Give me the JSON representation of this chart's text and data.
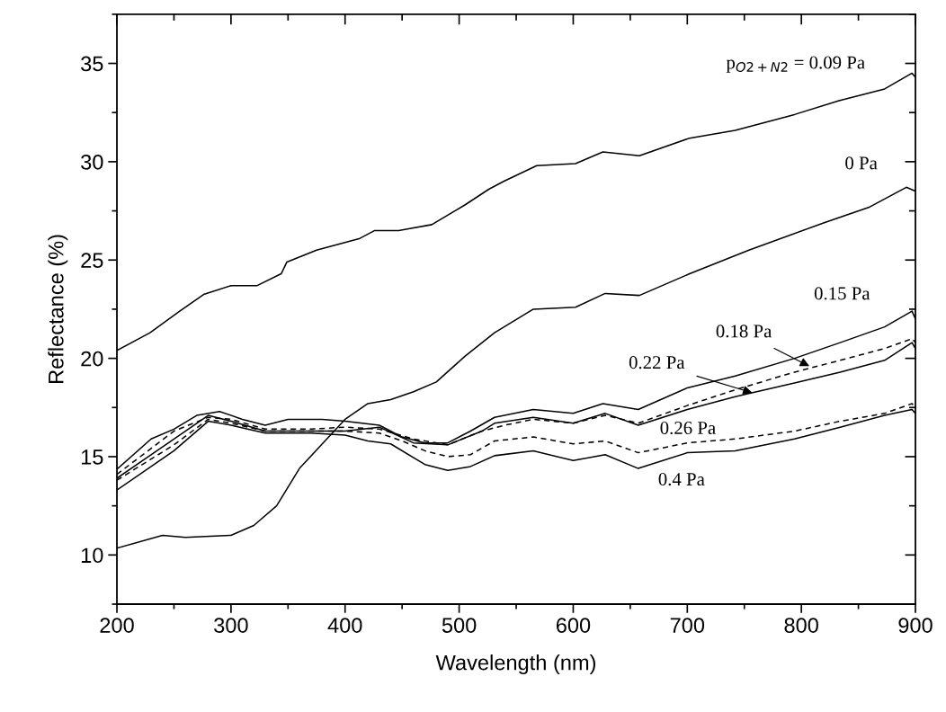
{
  "chart_data": {
    "type": "line",
    "xlabel": "Wavelength (nm)",
    "ylabel": "Reflectance (%)",
    "xlim": [
      200,
      900
    ],
    "xticks": [
      200,
      300,
      400,
      500,
      600,
      700,
      800,
      900
    ],
    "ylim": [
      7.5,
      37.5
    ],
    "yticks": [
      10,
      15,
      20,
      25,
      30,
      35
    ],
    "marker": "none",
    "series": [
      {
        "color": "#000000",
        "line_style": "solid",
        "x": [
          200,
          229,
          255,
          276,
          300,
          323,
          344,
          349,
          375,
          413,
          426,
          447,
          476,
          505,
          526,
          539,
          568,
          602,
          626,
          658,
          702,
          742,
          794,
          833,
          873,
          897,
          900
        ],
        "values": [
          20.4,
          21.3,
          22.4,
          23.25,
          23.7,
          23.7,
          24.3,
          24.9,
          25.5,
          26.1,
          26.5,
          26.5,
          26.8,
          27.8,
          28.6,
          29.0,
          29.8,
          29.9,
          30.5,
          30.3,
          31.2,
          31.6,
          32.4,
          33.1,
          33.7,
          34.5,
          34.3
        ]
      },
      {
        "color": "#000000",
        "line_style": "solid",
        "x": [
          200,
          240,
          260,
          300,
          320,
          340,
          360,
          380,
          400,
          420,
          440,
          460,
          480,
          505,
          531,
          565,
          602,
          628,
          658,
          702,
          754,
          820,
          860,
          892,
          900
        ],
        "values": [
          10.35,
          11.0,
          10.9,
          11.0,
          11.5,
          12.5,
          14.4,
          15.65,
          16.9,
          17.7,
          17.9,
          18.3,
          18.8,
          20.1,
          21.3,
          22.5,
          22.6,
          23.3,
          23.2,
          24.3,
          25.5,
          26.9,
          27.7,
          28.7,
          28.5
        ]
      },
      {
        "color": "#000000",
        "line_style": "solid",
        "x": [
          200,
          230,
          250,
          270,
          290,
          310,
          330,
          350,
          380,
          400,
          430,
          450,
          470,
          490,
          510,
          531,
          565,
          600,
          626,
          657,
          700,
          742,
          794,
          834,
          873,
          897,
          900
        ],
        "values": [
          14.36,
          15.9,
          16.4,
          17.1,
          17.3,
          16.9,
          16.6,
          16.9,
          16.9,
          16.8,
          16.6,
          16.0,
          15.7,
          15.7,
          16.3,
          17.0,
          17.4,
          17.2,
          17.7,
          17.4,
          18.5,
          19.1,
          20.0,
          20.8,
          21.6,
          22.4,
          22.0
        ]
      },
      {
        "color": "#000000",
        "line_style": "dashed",
        "x": [
          200,
          250,
          280,
          300,
          330,
          370,
          400,
          430,
          460,
          490,
          520,
          540,
          565,
          600,
          628,
          657,
          700,
          742,
          794,
          834,
          873,
          897,
          900
        ],
        "values": [
          14.1,
          16.3,
          17.0,
          16.9,
          16.4,
          16.4,
          16.5,
          16.4,
          15.9,
          15.6,
          16.3,
          16.6,
          16.9,
          16.7,
          17.1,
          16.7,
          17.6,
          18.4,
          19.3,
          19.9,
          20.5,
          21.0,
          20.8
        ]
      },
      {
        "color": "#000000",
        "line_style": "solid",
        "x": [
          200,
          250,
          280,
          300,
          330,
          360,
          400,
          430,
          460,
          490,
          520,
          531,
          565,
          600,
          628,
          657,
          700,
          742,
          794,
          834,
          873,
          897,
          900
        ],
        "values": [
          13.9,
          15.9,
          17.1,
          16.8,
          16.3,
          16.3,
          16.3,
          16.5,
          15.7,
          15.6,
          16.3,
          16.7,
          17.0,
          16.7,
          17.2,
          16.6,
          17.4,
          18.05,
          18.75,
          19.3,
          19.9,
          20.8,
          20.5
        ]
      },
      {
        "color": "#000000",
        "line_style": "dashed",
        "x": [
          200,
          250,
          280,
          300,
          330,
          370,
          400,
          430,
          450,
          470,
          490,
          510,
          531,
          565,
          600,
          628,
          657,
          700,
          742,
          794,
          834,
          873,
          897,
          900
        ],
        "values": [
          13.8,
          15.6,
          16.9,
          16.7,
          16.3,
          16.3,
          16.3,
          16.2,
          15.8,
          15.3,
          15.0,
          15.1,
          15.8,
          16.0,
          15.65,
          15.8,
          15.2,
          15.7,
          15.9,
          16.3,
          16.8,
          17.2,
          17.7,
          17.5
        ]
      },
      {
        "color": "#000000",
        "line_style": "solid",
        "x": [
          200,
          250,
          280,
          300,
          330,
          370,
          400,
          420,
          440,
          470,
          490,
          510,
          531,
          565,
          600,
          628,
          657,
          700,
          742,
          794,
          834,
          873,
          897,
          900
        ],
        "values": [
          13.3,
          15.3,
          16.8,
          16.6,
          16.2,
          16.2,
          16.1,
          15.8,
          15.65,
          14.6,
          14.3,
          14.5,
          15.05,
          15.3,
          14.8,
          15.1,
          14.4,
          15.2,
          15.3,
          15.9,
          16.5,
          17.1,
          17.4,
          17.2
        ]
      }
    ],
    "annotations": [
      "p$_{O2+N2}$ = 0.09 Pa",
      "0 Pa",
      "0.15 Pa",
      {
        "text": "0.18 Pa",
        "x": 807,
        "y": 19.6
      },
      {
        "text": "0.22 Pa",
        "x": 757,
        "y": 18.25
      },
      "0.26 Pa",
      "0.4 Pa"
    ]
  }
}
